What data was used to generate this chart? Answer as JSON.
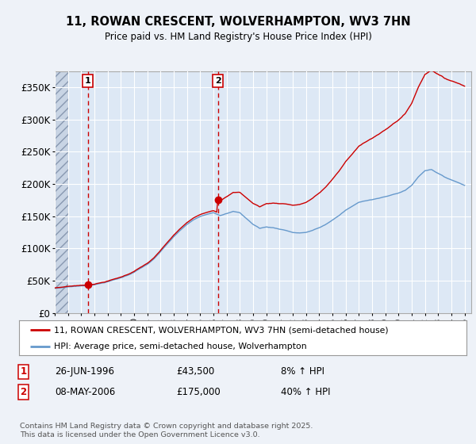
{
  "title": "11, ROWAN CRESCENT, WOLVERHAMPTON, WV3 7HN",
  "subtitle": "Price paid vs. HM Land Registry's House Price Index (HPI)",
  "background_color": "#eef2f8",
  "plot_bg_color": "#dde8f5",
  "grid_color": "#ffffff",
  "legend_label_red": "11, ROWAN CRESCENT, WOLVERHAMPTON, WV3 7HN (semi-detached house)",
  "legend_label_blue": "HPI: Average price, semi-detached house, Wolverhampton",
  "footer": "Contains HM Land Registry data © Crown copyright and database right 2025.\nThis data is licensed under the Open Government Licence v3.0.",
  "transaction1_date": "26-JUN-1996",
  "transaction1_price": "£43,500",
  "transaction1_hpi": "8% ↑ HPI",
  "transaction2_date": "08-MAY-2006",
  "transaction2_price": "£175,000",
  "transaction2_hpi": "40% ↑ HPI",
  "vline1_x": 1996.5,
  "vline2_x": 2006.35,
  "marker1_x": 1996.5,
  "marker1_y": 43500,
  "marker2_x": 2006.35,
  "marker2_y": 175000,
  "xmin": 1994.0,
  "xmax": 2025.5,
  "ymin": 0,
  "ymax": 375000,
  "yticks": [
    0,
    50000,
    100000,
    150000,
    200000,
    250000,
    300000,
    350000
  ],
  "ytick_labels": [
    "£0",
    "£50K",
    "£100K",
    "£150K",
    "£200K",
    "£250K",
    "£300K",
    "£350K"
  ],
  "red_line_color": "#cc0000",
  "blue_line_color": "#6699cc",
  "marker_color": "#cc0000",
  "vline_color": "#cc0000",
  "hatch_end_x": 1995.08
}
